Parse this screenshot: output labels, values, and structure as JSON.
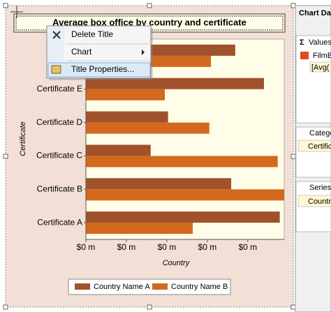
{
  "chart_data": {
    "type": "bar",
    "orientation": "horizontal",
    "title": "Average box office by country and certificate",
    "x_label": "Country",
    "y_label": "Certificate",
    "categories": [
      null,
      "Certificate E",
      "Certificate D",
      "Certificate C",
      "Certificate B",
      "Certificate A"
    ],
    "series": [
      {
        "name": "Country Name A",
        "color": "#a0522d",
        "values": [
          369000,
          440000,
          203000,
          160000,
          359000,
          479000
        ]
      },
      {
        "name": "Country Name B",
        "color": "#d2691e",
        "values": [
          309000,
          195000,
          305000,
          474000,
          490000,
          264000
        ]
      }
    ],
    "xlim": [
      0,
      490000
    ],
    "xticks": [
      {
        "value": 0,
        "label": "$0 m"
      },
      {
        "value": 100000,
        "label": "$0 m"
      },
      {
        "value": 200000,
        "label": "$0 m"
      },
      {
        "value": 300000,
        "label": "$0 m"
      },
      {
        "value": 400000,
        "label": "$0 m"
      }
    ],
    "legend": "bottom"
  },
  "context_menu": {
    "items": [
      "Delete Title",
      "Chart",
      "Title Properties..."
    ]
  },
  "side_panel": {
    "title": "Chart Da",
    "values_header": "Values",
    "values_item": "FilmB",
    "values_expr": "[Avg(",
    "categories_header": "Catego",
    "categories_item": "Certific",
    "series_header": "Series",
    "series_item": "Countr"
  }
}
